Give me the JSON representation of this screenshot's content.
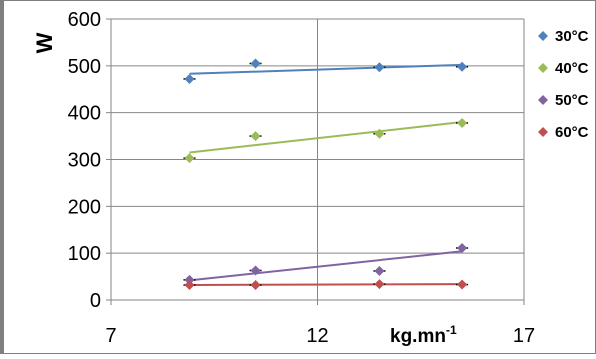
{
  "chart_data": {
    "type": "scatter",
    "ylabel": "W",
    "xlabel_main": "kg.mn",
    "xlabel_sup": "-1",
    "xlim": [
      7,
      17
    ],
    "ylim": [
      0,
      600
    ],
    "xticks": [
      7,
      12,
      17
    ],
    "yticks": [
      0,
      100,
      200,
      300,
      400,
      500,
      600
    ],
    "grid": "major (x and y)",
    "legend_position": "right",
    "series": [
      {
        "name": "30°C",
        "color": "#4f81bd",
        "x": [
          8.9,
          10.5,
          13.5,
          15.5
        ],
        "y": [
          472,
          505,
          497,
          498
        ],
        "trend": [
          [
            8.9,
            483
          ],
          [
            15.5,
            502
          ]
        ]
      },
      {
        "name": "40°C",
        "color": "#9bbb59",
        "x": [
          8.9,
          10.5,
          13.5,
          15.5
        ],
        "y": [
          303,
          350,
          355,
          378
        ],
        "trend": [
          [
            8.9,
            315
          ],
          [
            15.5,
            380
          ]
        ]
      },
      {
        "name": "50°C",
        "color": "#8064a2",
        "x": [
          8.9,
          10.5,
          13.5,
          15.5
        ],
        "y": [
          43,
          63,
          62,
          111
        ],
        "trend": [
          [
            8.9,
            42
          ],
          [
            15.5,
            104
          ]
        ]
      },
      {
        "name": "60°C",
        "color": "#c0504d",
        "x": [
          8.9,
          10.5,
          13.5,
          15.5
        ],
        "y": [
          32,
          32,
          34,
          33
        ],
        "trend": [
          [
            8.9,
            32
          ],
          [
            15.5,
            34
          ]
        ]
      }
    ]
  }
}
